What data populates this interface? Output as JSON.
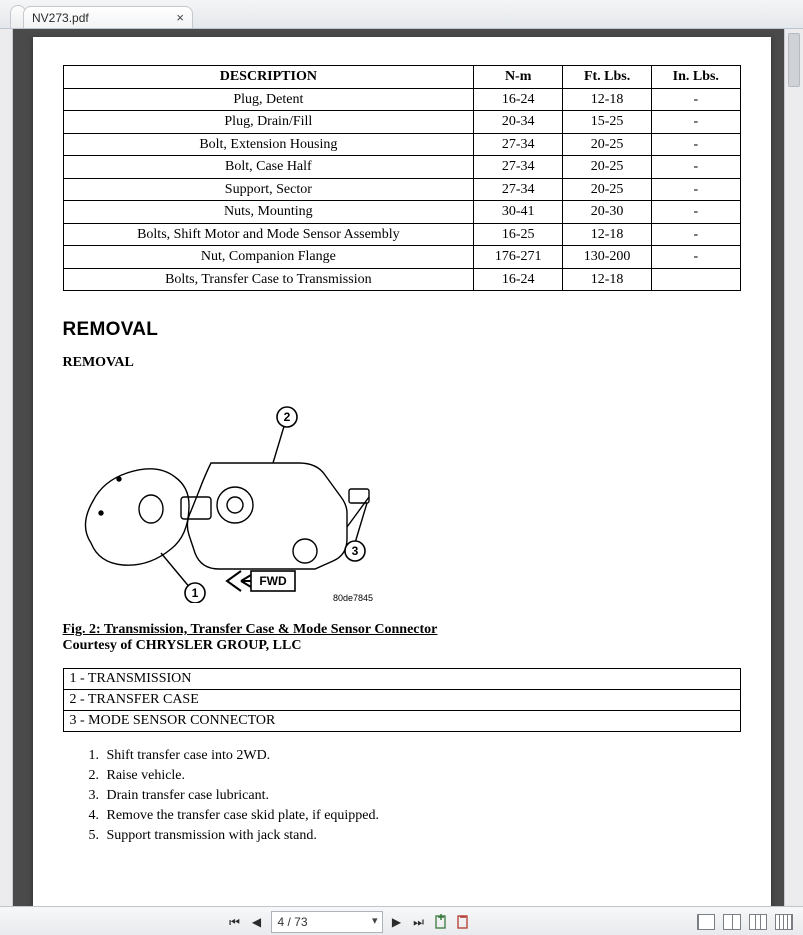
{
  "tab": {
    "title": "NV273.pdf"
  },
  "torque_table": {
    "columns": [
      "DESCRIPTION",
      "N-m",
      "Ft. Lbs.",
      "In. Lbs."
    ],
    "rows": [
      [
        "Plug, Detent",
        "16-24",
        "12-18",
        "-"
      ],
      [
        "Plug, Drain/Fill",
        "20-34",
        "15-25",
        "-"
      ],
      [
        "Bolt, Extension Housing",
        "27-34",
        "20-25",
        "-"
      ],
      [
        "Bolt, Case Half",
        "27-34",
        "20-25",
        "-"
      ],
      [
        "Support, Sector",
        "27-34",
        "20-25",
        "-"
      ],
      [
        "Nuts, Mounting",
        "30-41",
        "20-30",
        "-"
      ],
      [
        "Bolts, Shift Motor and Mode Sensor Assembly",
        "16-25",
        "12-18",
        "-"
      ],
      [
        "Nut, Companion Flange",
        "176-271",
        "130-200",
        "-"
      ],
      [
        "Bolts, Transfer Case to Transmission",
        "16-24",
        "12-18",
        ""
      ]
    ]
  },
  "sections": {
    "heading": "REMOVAL",
    "subheading": "REMOVAL"
  },
  "figure": {
    "caption": "Fig. 2: Transmission, Transfer Case & Mode Sensor Connector",
    "credit": "Courtesy of CHRYSLER GROUP, LLC",
    "idcode": "80de7845",
    "callouts": {
      "1": "1",
      "2": "2",
      "3": "3"
    },
    "fwd_label": "FWD"
  },
  "legend": {
    "rows": [
      "1 - TRANSMISSION",
      "2 - TRANSFER CASE",
      "3 - MODE SENSOR CONNECTOR"
    ]
  },
  "steps": [
    "Shift transfer case into 2WD.",
    "Raise vehicle.",
    "Drain transfer case lubricant.",
    "Remove the transfer case skid plate, if equipped.",
    "Support transmission with jack stand."
  ],
  "toolbar": {
    "page_display": "4 / 73",
    "total_pages": 73,
    "current_page": 4
  }
}
